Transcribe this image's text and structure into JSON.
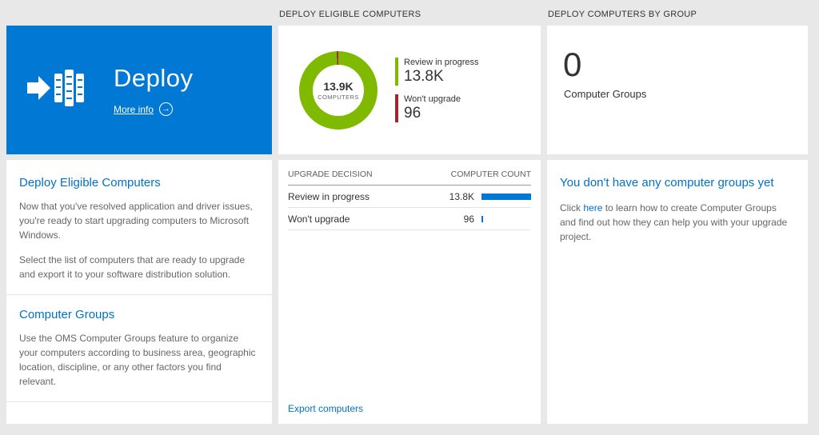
{
  "colors": {
    "accent_blue": "#0078d4",
    "link_blue": "#0072c6",
    "green": "#7fba00",
    "red": "#a4262c",
    "background": "#e8e8e8"
  },
  "left": {
    "tile": {
      "title": "Deploy",
      "more_info": "More info"
    },
    "sections": [
      {
        "heading": "Deploy Eligible Computers",
        "paragraphs": [
          "Now that you've resolved application and driver issues, you're ready to start upgrading computers to Microsoft Windows.",
          "Select the list of computers that are ready to upgrade and export it to your software distribution solution."
        ]
      },
      {
        "heading": "Computer Groups",
        "paragraphs": [
          "Use the OMS Computer Groups feature to organize your computers according to business area, geographic location, discipline, or any other factors you find relevant."
        ]
      }
    ]
  },
  "middle": {
    "header": "DEPLOY ELIGIBLE COMPUTERS",
    "donut": {
      "center_value": "13.9K",
      "center_label": "COMPUTERS"
    },
    "table": {
      "columns": [
        "UPGRADE DECISION",
        "COMPUTER COUNT"
      ],
      "rows": [
        {
          "label": "Review in progress",
          "display": "13.8K",
          "value": 13800
        },
        {
          "label": "Won't upgrade",
          "display": "96",
          "value": 96
        }
      ]
    },
    "footer_link": "Export computers"
  },
  "right": {
    "header": "DEPLOY COMPUTERS BY GROUP",
    "count": "0",
    "count_label": "Computer Groups",
    "section": {
      "heading": "You don't have any computer groups yet",
      "text_before_link": "Click ",
      "link": "here",
      "text_after_link": " to learn how to create Computer Groups and find out how they can help you with your upgrade project."
    }
  },
  "chart_data": {
    "type": "pie",
    "subtype": "donut",
    "title": "Deploy Eligible Computers",
    "center_value": "13.9K",
    "center_label": "COMPUTERS",
    "segments": [
      {
        "label": "Review in progress",
        "value": 13800,
        "display": "13.8K",
        "color": "#7fba00"
      },
      {
        "label": "Won't upgrade",
        "value": 96,
        "display": "96",
        "color": "#a4262c"
      }
    ],
    "legend_position": "right"
  }
}
